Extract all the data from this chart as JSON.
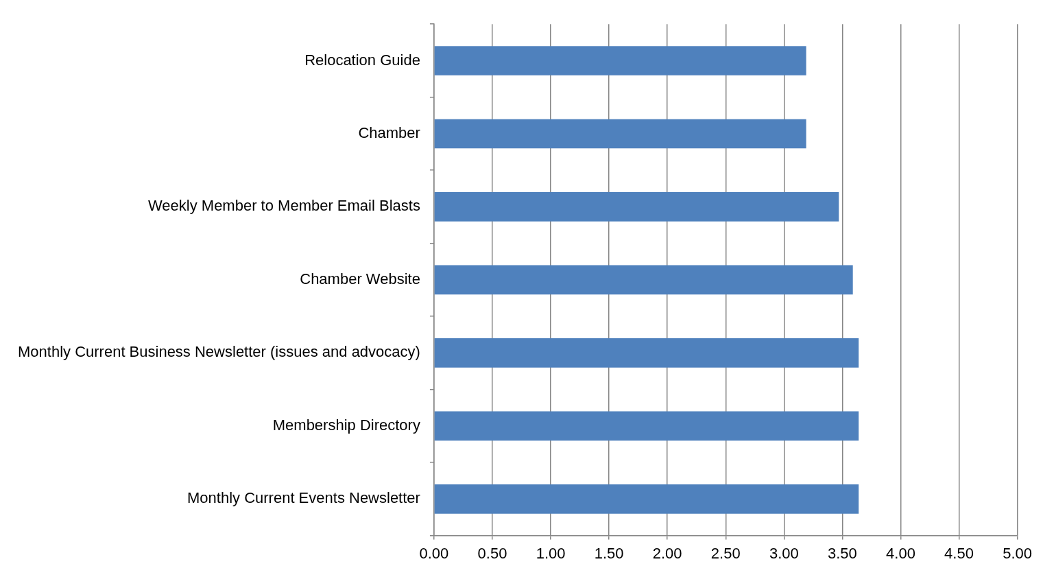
{
  "chart_data": {
    "type": "bar",
    "orientation": "horizontal",
    "categories": [
      "Relocation Guide",
      "Chamber",
      "Weekly Member to Member Email Blasts",
      "Chamber Website",
      "Monthly Current Business Newsletter (issues and advocacy)",
      "Membership Directory",
      "Monthly Current Events Newsletter"
    ],
    "values": [
      3.19,
      3.19,
      3.47,
      3.59,
      3.64,
      3.64,
      3.64
    ],
    "color": "#4f81bd",
    "xlim": [
      0,
      5
    ],
    "xticks": [
      {
        "value": 0,
        "label": "0.00"
      },
      {
        "value": 0.5,
        "label": "0.50"
      },
      {
        "value": 1,
        "label": "1.00"
      },
      {
        "value": 1.5,
        "label": "1.50"
      },
      {
        "value": 2,
        "label": "2.00"
      },
      {
        "value": 2.5,
        "label": "2.50"
      },
      {
        "value": 3,
        "label": "3.00"
      },
      {
        "value": 3.5,
        "label": "3.50"
      },
      {
        "value": 4,
        "label": "4.00"
      },
      {
        "value": 4.5,
        "label": "4.50"
      },
      {
        "value": 5,
        "label": "5.00"
      }
    ],
    "grid": "x",
    "legend": false
  }
}
